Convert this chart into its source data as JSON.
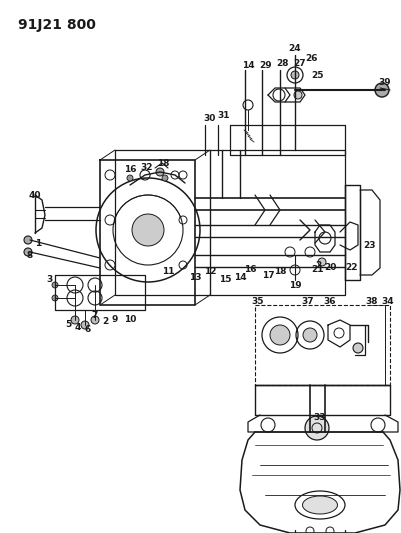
{
  "title": "91J21 800",
  "bg": "#ffffff",
  "fg": "#1a1a1a",
  "figsize": [
    4.02,
    5.33
  ],
  "dpi": 100
}
